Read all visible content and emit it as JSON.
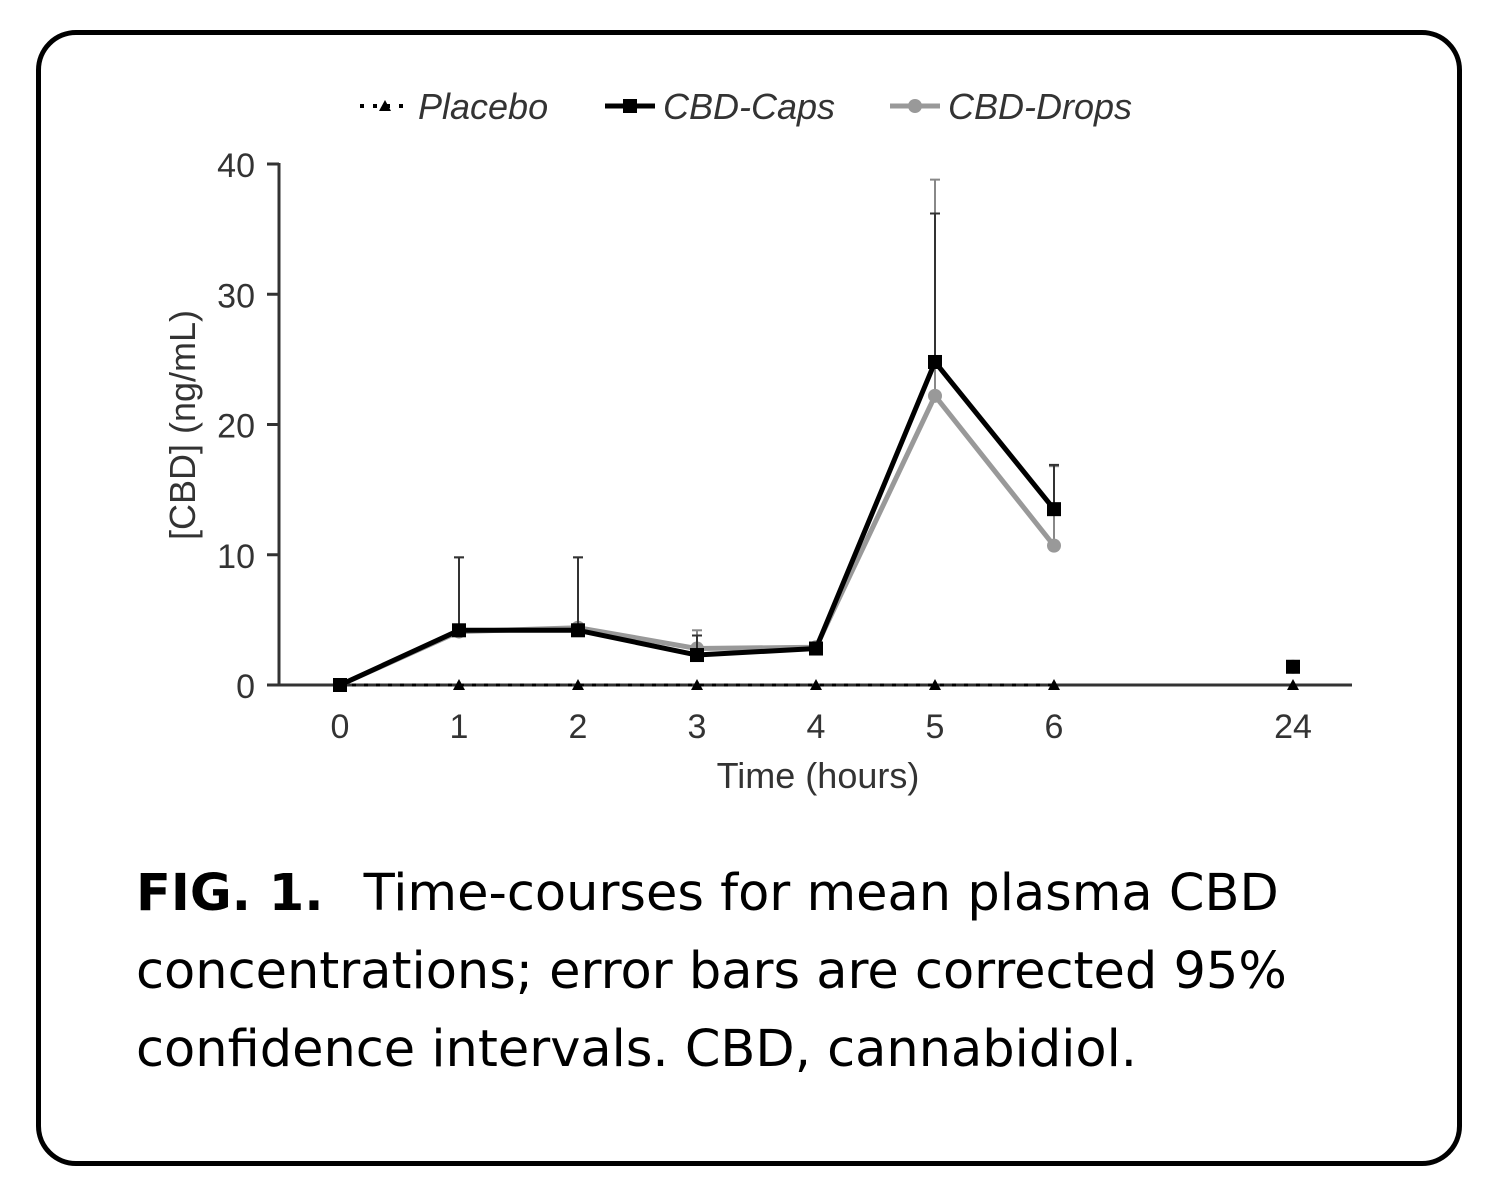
{
  "chart_data": {
    "type": "line",
    "xlabel": "Time (hours)",
    "ylabel": "[CBD] (ng/mL)",
    "categories": [
      "0",
      "1",
      "2",
      "3",
      "4",
      "5",
      "6",
      "24"
    ],
    "yticks": [
      "0",
      "10",
      "20",
      "30",
      "40"
    ],
    "ylim": [
      0,
      40
    ],
    "legend_position": "top",
    "grid": false,
    "series": [
      {
        "name": "Placebo",
        "color": "#000000",
        "style": "dotted",
        "marker": "triangle",
        "values": [
          0,
          0,
          0,
          0,
          0,
          0,
          0,
          0
        ]
      },
      {
        "name": "CBD-Caps",
        "color": "#000000",
        "style": "solid",
        "marker": "square",
        "values": [
          0,
          4.2,
          4.2,
          2.3,
          2.8,
          24.8,
          13.5,
          1.4
        ],
        "error_upper": [
          null,
          9.8,
          9.8,
          3.8,
          null,
          36.2,
          16.9,
          null
        ]
      },
      {
        "name": "CBD-Drops",
        "color": "#999999",
        "style": "solid",
        "marker": "circle",
        "values": [
          0,
          4.1,
          4.4,
          2.8,
          2.9,
          22.2,
          10.7,
          1.4
        ],
        "error_upper": [
          null,
          9.8,
          9.8,
          4.2,
          null,
          38.8,
          16.8,
          null
        ]
      }
    ]
  },
  "caption": {
    "label": "FIG. 1.",
    "text": "Time-courses for mean plasma CBD concentrations; error bars are corrected 95% confidence intervals. CBD, cannabidiol."
  }
}
